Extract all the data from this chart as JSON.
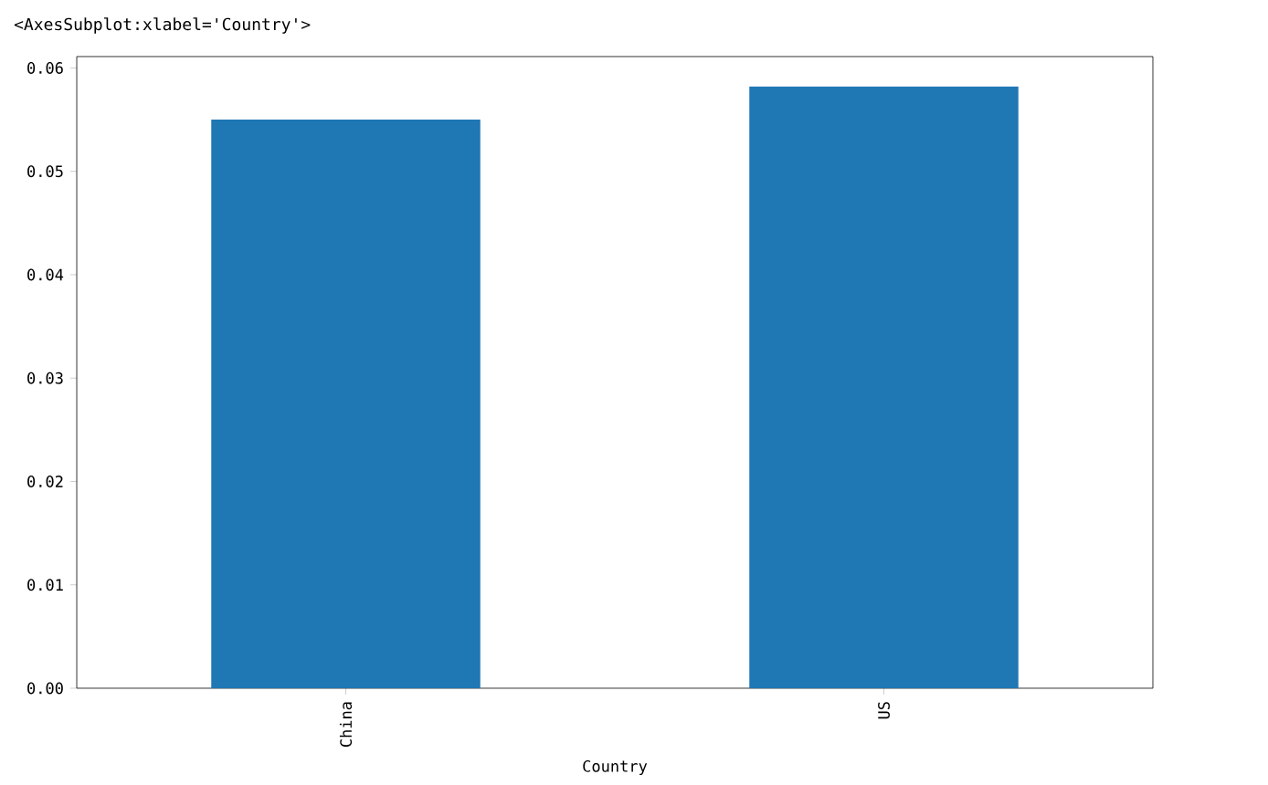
{
  "chart_data": {
    "type": "bar",
    "annotations": [
      "<AxesSubplot:xlabel='Country'>"
    ],
    "xlabel": "Country",
    "categories": [
      "China",
      "US"
    ],
    "values": [
      0.055,
      0.0582
    ],
    "color": "#1f77b4",
    "ylim": [
      0,
      0.0611
    ],
    "yticks": [
      {
        "value": 0,
        "label": "0.00"
      },
      {
        "value": 0.01,
        "label": "0.01"
      },
      {
        "value": 0.02,
        "label": "0.02"
      },
      {
        "value": 0.03,
        "label": "0.03"
      },
      {
        "value": 0.04,
        "label": "0.04"
      },
      {
        "value": 0.05,
        "label": "0.05"
      },
      {
        "value": 0.06,
        "label": "0.06"
      }
    ]
  }
}
